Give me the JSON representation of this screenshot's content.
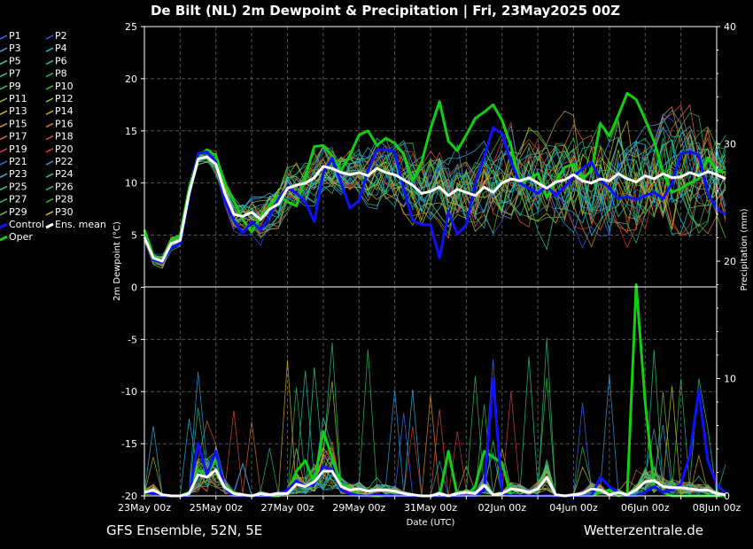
{
  "header": {
    "title": "De Bilt  (NL)  2m Dewpoint & Precipitation | Fri, 23May2025 00Z"
  },
  "footer": {
    "source_left": "GFS Ensemble, 52N, 5E",
    "source_right": "Wetterzentrale.de"
  },
  "chart_data": {
    "type": "line",
    "title": "De Bilt  (NL)  2m Dewpoint & Precipitation | Fri, 23May2025 00Z",
    "xlabel": "Date (UTC)",
    "ylabel_left": "2m Dewpoint (°C)",
    "ylabel_right": "Precipitation (mm)",
    "ylim_left": [
      -20,
      25
    ],
    "ylim_right": [
      0,
      40
    ],
    "left_ticks": [
      "25",
      "20",
      "15",
      "10",
      "5",
      "0",
      "-5",
      "-10",
      "-15",
      "-20"
    ],
    "right_ticks": [
      "40",
      "30",
      "20",
      "10",
      "0"
    ],
    "x_ticks": [
      "23May 00z",
      "25May 00z",
      "27May 00z",
      "29May 00z",
      "31May 00z",
      "02Jun 00z",
      "04Jun 00z",
      "06Jun 00z",
      "08Jun 00z"
    ],
    "x_range_hours": [
      0,
      384
    ],
    "step_hours": 6,
    "grid": true,
    "legend_placement": "left",
    "legend": [
      {
        "label": "P1",
        "color": "#3c6cff"
      },
      {
        "label": "P2",
        "color": "#2a5cff"
      },
      {
        "label": "P3",
        "color": "#3aa0e0"
      },
      {
        "label": "P4",
        "color": "#2ab4d8"
      },
      {
        "label": "P5",
        "color": "#20c8c8"
      },
      {
        "label": "P6",
        "color": "#20c8a8"
      },
      {
        "label": "P7",
        "color": "#20c88c"
      },
      {
        "label": "P8",
        "color": "#20c070"
      },
      {
        "label": "P9",
        "color": "#28c060"
      },
      {
        "label": "P10",
        "color": "#34c040"
      },
      {
        "label": "P11",
        "color": "#98c828"
      },
      {
        "label": "P12",
        "color": "#b4c020"
      },
      {
        "label": "P13",
        "color": "#c8c020"
      },
      {
        "label": "P14",
        "color": "#d0a820"
      },
      {
        "label": "P15",
        "color": "#d89020"
      },
      {
        "label": "P16",
        "color": "#d87828"
      },
      {
        "label": "P17",
        "color": "#d86830"
      },
      {
        "label": "P18",
        "color": "#d85030"
      },
      {
        "label": "P19",
        "color": "#d84040"
      },
      {
        "label": "P20",
        "color": "#d83a28"
      },
      {
        "label": "P21",
        "color": "#2878d8"
      },
      {
        "label": "P22",
        "color": "#28a0e0"
      },
      {
        "label": "P23",
        "color": "#28b8e0"
      },
      {
        "label": "P24",
        "color": "#28c8c0"
      },
      {
        "label": "P25",
        "color": "#28c8a0"
      },
      {
        "label": "P26",
        "color": "#28c080"
      },
      {
        "label": "P27",
        "color": "#30c060"
      },
      {
        "label": "P28",
        "color": "#40b840"
      },
      {
        "label": "P29",
        "color": "#70c030"
      },
      {
        "label": "P30",
        "color": "#c8c428"
      },
      {
        "label": "Control",
        "color": "#1010ff"
      },
      {
        "label": "Ens. mean",
        "color": "#ffffff"
      },
      {
        "label": "Oper",
        "color": "#10d010"
      }
    ],
    "series": [
      {
        "name": "Ens. mean",
        "axis": "dewpoint",
        "values": [
          4.8,
          2.8,
          2.5,
          4.2,
          4.5,
          9,
          12.3,
          12.5,
          11.8,
          9,
          7,
          6.8,
          7.2,
          6.5,
          7.5,
          8,
          9.5,
          9.8,
          10,
          10.5,
          11.6,
          11.4,
          11,
          10.8,
          11,
          10.7,
          11.4,
          11,
          10.8,
          10.3,
          9.8,
          9,
          9.2,
          9.6,
          8.8,
          9.4,
          9.1,
          8.8,
          9.6,
          9.1,
          10,
          10.4,
          10.2,
          10.5,
          10,
          9.5,
          10.1,
          10.3,
          10.8,
          10.2,
          10,
          10.4,
          10.2,
          10.9,
          10.4,
          10.1,
          10.7,
          10.4,
          10.9,
          10.5,
          10.6,
          11,
          10.7,
          11.1,
          10.8,
          10.4
        ]
      },
      {
        "name": "Control",
        "axis": "dewpoint",
        "values": [
          4.8,
          2.6,
          2.4,
          3.8,
          4.2,
          8.8,
          12.8,
          13,
          12,
          8.3,
          6.4,
          5.2,
          6.3,
          5.5,
          6.8,
          8.5,
          9.6,
          9,
          8.2,
          6.3,
          11,
          12.4,
          10,
          7.6,
          8.3,
          11.2,
          13.2,
          13.2,
          13,
          9.4,
          6.4,
          6,
          6,
          2.8,
          7.2,
          5.1,
          6,
          10,
          12.5,
          15.3,
          14.7,
          12,
          10,
          9.5,
          9,
          9.7,
          8.8,
          9.6,
          10.6,
          11.4,
          12,
          10.3,
          9.5,
          8.5,
          8.7,
          8.4,
          8.8,
          9.1,
          8.5,
          10,
          12.8,
          13,
          12.7,
          9,
          7.5,
          7
        ]
      },
      {
        "name": "Oper",
        "axis": "dewpoint",
        "values": [
          5.5,
          3,
          2.5,
          4.5,
          5,
          9.5,
          12.5,
          13.2,
          12.6,
          10,
          8.3,
          6.5,
          5.3,
          6.8,
          7.7,
          8.8,
          8.2,
          7.8,
          10.6,
          13.5,
          13.6,
          12.6,
          11.2,
          12.7,
          14.6,
          15,
          13.6,
          14.3,
          13.8,
          12.8,
          10.2,
          12,
          15.2,
          17.8,
          14,
          13.1,
          14.6,
          16.2,
          16.8,
          17.5,
          16,
          13.5,
          10,
          10.4,
          10.9,
          8.6,
          10.2,
          11.5,
          11.8,
          10.4,
          11.2,
          15.7,
          14.5,
          16.5,
          18.6,
          18,
          16.1,
          14,
          11,
          9.1,
          9.5,
          10,
          10.4,
          12.4,
          11.2,
          11
        ]
      },
      {
        "name": "Ens. mean",
        "axis": "precipitation",
        "values": [
          0.3,
          0.5,
          0.1,
          0,
          0,
          0.2,
          1.8,
          1.6,
          2.2,
          0.7,
          0.2,
          0.1,
          0,
          0.2,
          0.1,
          0.2,
          0.2,
          1,
          0.8,
          1.2,
          2.1,
          2.1,
          0.8,
          0.5,
          0.6,
          0.4,
          0.5,
          0.5,
          0.4,
          0.2,
          0.1,
          0,
          0,
          0.2,
          0,
          0.2,
          0.3,
          0.2,
          0.9,
          0.1,
          0.2,
          0.6,
          0.5,
          0.3,
          0.6,
          1.6,
          0.1,
          0,
          0.1,
          0.2,
          0.6,
          0.5,
          0.1,
          0.3,
          0.1,
          0.5,
          1.2,
          1.3,
          0.8,
          0.7,
          0.7,
          0.6,
          0.5,
          0.5,
          0.2,
          0.1
        ]
      },
      {
        "name": "Control",
        "axis": "precipitation",
        "values": [
          0.3,
          0.2,
          0,
          0,
          0,
          0,
          4.5,
          1.8,
          3.8,
          0.6,
          0,
          0,
          0,
          0,
          0,
          0.2,
          0.5,
          1.3,
          0.8,
          1,
          2.5,
          2.2,
          0.5,
          0.2,
          0,
          0,
          0.1,
          0,
          0,
          0,
          0,
          0,
          0,
          0,
          0,
          0,
          0,
          0,
          0.5,
          10,
          0.2,
          0,
          0,
          0,
          0,
          0,
          0,
          0,
          0,
          0,
          0,
          1.6,
          0.8,
          0.3,
          0,
          0,
          0.3,
          0.8,
          0.3,
          0.5,
          1,
          3.5,
          9,
          3,
          1,
          0.2
        ]
      },
      {
        "name": "Oper",
        "axis": "precipitation",
        "values": [
          0.2,
          0.3,
          0,
          0,
          0,
          0.3,
          2.2,
          1.8,
          3.1,
          0.8,
          0.3,
          0,
          0,
          0,
          0,
          0,
          0.3,
          2.1,
          3,
          1.1,
          5.5,
          3.3,
          1,
          0.6,
          0,
          0,
          0,
          0,
          0,
          0,
          0,
          0,
          0,
          0,
          3.8,
          0,
          0,
          0.8,
          3.8,
          3.3,
          2.8,
          0,
          0,
          0,
          0,
          0,
          0,
          0,
          0,
          0,
          0,
          0.3,
          0.5,
          0,
          0.2,
          18,
          8,
          0.8,
          0.3,
          0,
          0,
          0,
          0,
          0,
          0,
          0
        ]
      }
    ]
  }
}
